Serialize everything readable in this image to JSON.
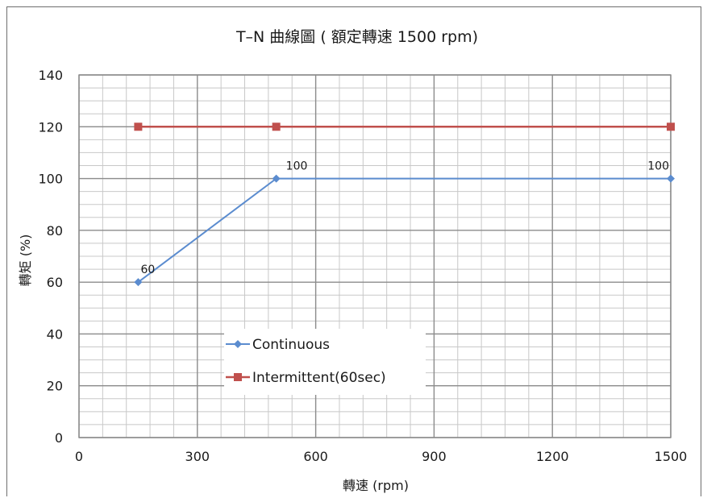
{
  "chart_data": {
    "type": "line",
    "title": "T–N 曲線圖 ( 額定轉速 1500 rpm)",
    "xlabel": "轉速 (rpm)",
    "ylabel": "轉矩 (%)",
    "xlim": [
      0,
      1500
    ],
    "ylim": [
      0,
      140
    ],
    "xticks": [
      0,
      300,
      600,
      900,
      1200,
      1500
    ],
    "xtick_labels": [
      "0",
      "300",
      "600",
      "900",
      "1200",
      "1500"
    ],
    "yticks": [
      0,
      20,
      40,
      60,
      80,
      100,
      120,
      140
    ],
    "ytick_labels": [
      "0",
      "20",
      "40",
      "60",
      "80",
      "100",
      "120",
      "140"
    ],
    "grid": true,
    "legend_position": "bottom-left",
    "series": [
      {
        "name": "Continuous",
        "color": "#5b8ccf",
        "marker": "diamond",
        "points": [
          {
            "x": 150,
            "y": 60,
            "label": "60"
          },
          {
            "x": 500,
            "y": 100,
            "label": "100"
          },
          {
            "x": 1500,
            "y": 100,
            "label": "100"
          }
        ]
      },
      {
        "name": "Intermittent(60sec)",
        "color": "#c0504d",
        "marker": "square",
        "points": [
          {
            "x": 150,
            "y": 120
          },
          {
            "x": 500,
            "y": 120
          },
          {
            "x": 1500,
            "y": 120
          }
        ]
      }
    ]
  }
}
